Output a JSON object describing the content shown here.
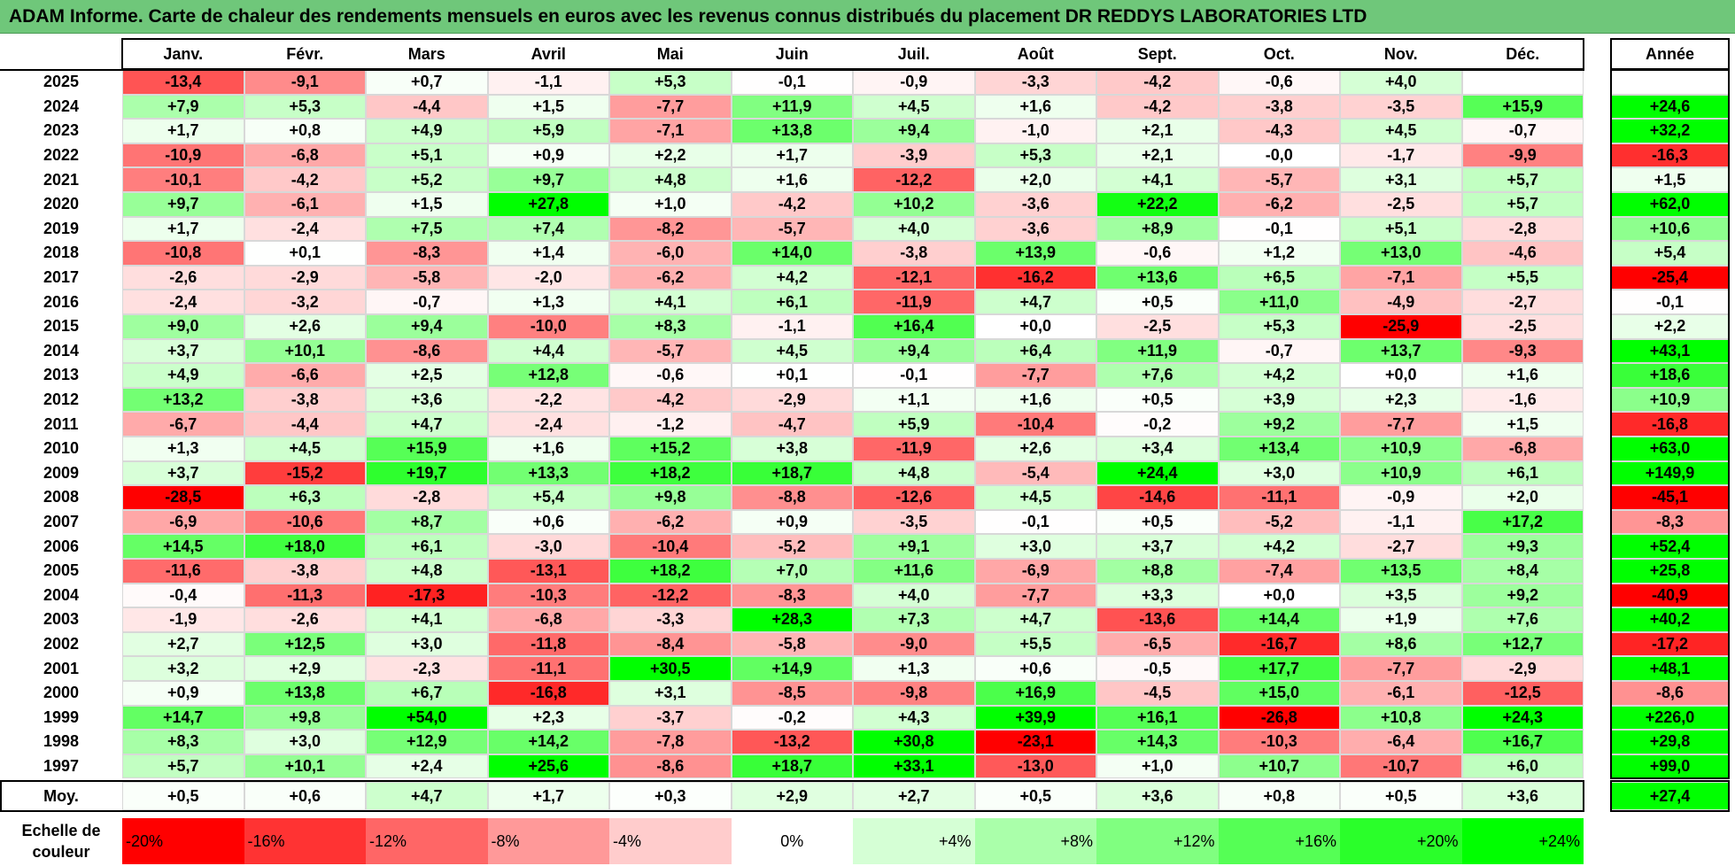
{
  "title": "ADAM Informe. Carte de chaleur des rendements mensuels en euros avec les revenus connus distribués du placement DR REDDYS LABORATORIES LTD",
  "chart_data": {
    "type": "heatmap",
    "months": [
      "Janv.",
      "Févr.",
      "Mars",
      "Avril",
      "Mai",
      "Juin",
      "Juil.",
      "Août",
      "Sept.",
      "Oct.",
      "Nov.",
      "Déc."
    ],
    "year_header": "Année",
    "avg_label": "Moy.",
    "rows": [
      {
        "year": "2025",
        "values": [
          "-13,4",
          "-9,1",
          "+0,7",
          "-1,1",
          "+5,3",
          "-0,1",
          "-0,9",
          "-3,3",
          "-4,2",
          "-0,6",
          "+4,0",
          ""
        ],
        "annual": ""
      },
      {
        "year": "2024",
        "values": [
          "+7,9",
          "+5,3",
          "-4,4",
          "+1,5",
          "-7,7",
          "+11,9",
          "+4,5",
          "+1,6",
          "-4,2",
          "-3,8",
          "-3,5",
          "+15,9"
        ],
        "annual": "+24,6"
      },
      {
        "year": "2023",
        "values": [
          "+1,7",
          "+0,8",
          "+4,9",
          "+5,9",
          "-7,1",
          "+13,8",
          "+9,4",
          "-1,0",
          "+2,1",
          "-4,3",
          "+4,5",
          "-0,7"
        ],
        "annual": "+32,2"
      },
      {
        "year": "2022",
        "values": [
          "-10,9",
          "-6,8",
          "+5,1",
          "+0,9",
          "+2,2",
          "+1,7",
          "-3,9",
          "+5,3",
          "+2,1",
          "-0,0",
          "-1,7",
          "-9,9"
        ],
        "annual": "-16,3"
      },
      {
        "year": "2021",
        "values": [
          "-10,1",
          "-4,2",
          "+5,2",
          "+9,7",
          "+4,8",
          "+1,6",
          "-12,2",
          "+2,0",
          "+4,1",
          "-5,7",
          "+3,1",
          "+5,7"
        ],
        "annual": "+1,5"
      },
      {
        "year": "2020",
        "values": [
          "+9,7",
          "-6,1",
          "+1,5",
          "+27,8",
          "+1,0",
          "-4,2",
          "+10,2",
          "-3,6",
          "+22,2",
          "-6,2",
          "-2,5",
          "+5,7"
        ],
        "annual": "+62,0"
      },
      {
        "year": "2019",
        "values": [
          "+1,7",
          "-2,4",
          "+7,5",
          "+7,4",
          "-8,2",
          "-5,7",
          "+4,0",
          "-3,6",
          "+8,9",
          "-0,1",
          "+5,1",
          "-2,8"
        ],
        "annual": "+10,6"
      },
      {
        "year": "2018",
        "values": [
          "-10,8",
          "+0,1",
          "-8,3",
          "+1,4",
          "-6,0",
          "+14,0",
          "-3,8",
          "+13,9",
          "-0,6",
          "+1,2",
          "+13,0",
          "-4,6"
        ],
        "annual": "+5,4"
      },
      {
        "year": "2017",
        "values": [
          "-2,6",
          "-2,9",
          "-5,8",
          "-2,0",
          "-6,2",
          "+4,2",
          "-12,1",
          "-16,2",
          "+13,6",
          "+6,5",
          "-7,1",
          "+5,5"
        ],
        "annual": "-25,4"
      },
      {
        "year": "2016",
        "values": [
          "-2,4",
          "-3,2",
          "-0,7",
          "+1,3",
          "+4,1",
          "+6,1",
          "-11,9",
          "+4,7",
          "+0,5",
          "+11,0",
          "-4,9",
          "-2,7"
        ],
        "annual": "-0,1"
      },
      {
        "year": "2015",
        "values": [
          "+9,0",
          "+2,6",
          "+9,4",
          "-10,0",
          "+8,3",
          "-1,1",
          "+16,4",
          "+0,0",
          "-2,5",
          "+5,3",
          "-25,9",
          "-2,5"
        ],
        "annual": "+2,2"
      },
      {
        "year": "2014",
        "values": [
          "+3,7",
          "+10,1",
          "-8,6",
          "+4,4",
          "-5,7",
          "+4,5",
          "+9,4",
          "+6,4",
          "+11,9",
          "-0,7",
          "+13,7",
          "-9,3"
        ],
        "annual": "+43,1"
      },
      {
        "year": "2013",
        "values": [
          "+4,9",
          "-6,6",
          "+2,5",
          "+12,8",
          "-0,6",
          "+0,1",
          "-0,1",
          "-7,7",
          "+7,6",
          "+4,2",
          "+0,0",
          "+1,6"
        ],
        "annual": "+18,6"
      },
      {
        "year": "2012",
        "values": [
          "+13,2",
          "-3,8",
          "+3,6",
          "-2,2",
          "-4,2",
          "-2,9",
          "+1,1",
          "+1,6",
          "+0,5",
          "+3,9",
          "+2,3",
          "-1,6"
        ],
        "annual": "+10,9"
      },
      {
        "year": "2011",
        "values": [
          "-6,7",
          "-4,4",
          "+4,7",
          "-2,4",
          "-1,2",
          "-4,7",
          "+5,9",
          "-10,4",
          "-0,2",
          "+9,2",
          "-7,7",
          "+1,5"
        ],
        "annual": "-16,8"
      },
      {
        "year": "2010",
        "values": [
          "+1,3",
          "+4,5",
          "+15,9",
          "+1,6",
          "+15,2",
          "+3,8",
          "-11,9",
          "+2,6",
          "+3,4",
          "+13,4",
          "+10,9",
          "-6,8"
        ],
        "annual": "+63,0"
      },
      {
        "year": "2009",
        "values": [
          "+3,7",
          "-15,2",
          "+19,7",
          "+13,3",
          "+18,2",
          "+18,7",
          "+4,8",
          "-5,4",
          "+24,4",
          "+3,0",
          "+10,9",
          "+6,1"
        ],
        "annual": "+149,9"
      },
      {
        "year": "2008",
        "values": [
          "-28,5",
          "+6,3",
          "-2,8",
          "+5,4",
          "+9,8",
          "-8,8",
          "-12,6",
          "+4,5",
          "-14,6",
          "-11,1",
          "-0,9",
          "+2,0"
        ],
        "annual": "-45,1"
      },
      {
        "year": "2007",
        "values": [
          "-6,9",
          "-10,6",
          "+8,7",
          "+0,6",
          "-6,2",
          "+0,9",
          "-3,5",
          "-0,1",
          "+0,5",
          "-5,2",
          "-1,1",
          "+17,2"
        ],
        "annual": "-8,3"
      },
      {
        "year": "2006",
        "values": [
          "+14,5",
          "+18,0",
          "+6,1",
          "-3,0",
          "-10,4",
          "-5,2",
          "+9,1",
          "+3,0",
          "+3,7",
          "+4,2",
          "-2,7",
          "+9,3"
        ],
        "annual": "+52,4"
      },
      {
        "year": "2005",
        "values": [
          "-11,6",
          "-3,8",
          "+4,8",
          "-13,1",
          "+18,2",
          "+7,0",
          "+11,6",
          "-6,9",
          "+8,8",
          "-7,4",
          "+13,5",
          "+8,4"
        ],
        "annual": "+25,8"
      },
      {
        "year": "2004",
        "values": [
          "-0,4",
          "-11,3",
          "-17,3",
          "-10,3",
          "-12,2",
          "-8,3",
          "+4,0",
          "-7,7",
          "+3,3",
          "+0,0",
          "+3,5",
          "+9,2"
        ],
        "annual": "-40,9"
      },
      {
        "year": "2003",
        "values": [
          "-1,9",
          "-2,6",
          "+4,1",
          "-6,8",
          "-3,3",
          "+28,3",
          "+7,3",
          "+4,7",
          "-13,6",
          "+14,4",
          "+1,9",
          "+7,6"
        ],
        "annual": "+40,2"
      },
      {
        "year": "2002",
        "values": [
          "+2,7",
          "+12,5",
          "+3,0",
          "-11,8",
          "-8,4",
          "-5,8",
          "-9,0",
          "+5,5",
          "-6,5",
          "-16,7",
          "+8,6",
          "+12,7"
        ],
        "annual": "-17,2"
      },
      {
        "year": "2001",
        "values": [
          "+3,2",
          "+2,9",
          "-2,3",
          "-11,1",
          "+30,5",
          "+14,9",
          "+1,3",
          "+0,6",
          "-0,5",
          "+17,7",
          "-7,7",
          "-2,9"
        ],
        "annual": "+48,1"
      },
      {
        "year": "2000",
        "values": [
          "+0,9",
          "+13,8",
          "+6,7",
          "-16,8",
          "+3,1",
          "-8,5",
          "-9,8",
          "+16,9",
          "-4,5",
          "+15,0",
          "-6,1",
          "-12,5"
        ],
        "annual": "-8,6"
      },
      {
        "year": "1999",
        "values": [
          "+14,7",
          "+9,8",
          "+54,0",
          "+2,3",
          "-3,7",
          "-0,2",
          "+4,3",
          "+39,9",
          "+16,1",
          "-26,8",
          "+10,8",
          "+24,3"
        ],
        "annual": "+226,0"
      },
      {
        "year": "1998",
        "values": [
          "+8,3",
          "+3,0",
          "+12,9",
          "+14,2",
          "-7,8",
          "-13,2",
          "+30,8",
          "-23,1",
          "+14,3",
          "-10,3",
          "-6,4",
          "+16,7"
        ],
        "annual": "+29,8"
      },
      {
        "year": "1997",
        "values": [
          "+5,7",
          "+10,1",
          "+2,4",
          "+25,6",
          "-8,6",
          "+18,7",
          "+33,1",
          "-13,0",
          "+1,0",
          "+10,7",
          "-10,7",
          "+6,0"
        ],
        "annual": "+99,0"
      }
    ],
    "averages": [
      "+0,5",
      "+0,6",
      "+4,7",
      "+1,7",
      "+0,3",
      "+2,9",
      "+2,7",
      "+0,5",
      "+3,6",
      "+0,8",
      "+0,5",
      "+3,6"
    ],
    "average_annual": "+27,4",
    "scale_label": "Echelle de couleur",
    "scale": [
      {
        "label": "-20%",
        "value": -20
      },
      {
        "label": "-16%",
        "value": -16
      },
      {
        "label": "-12%",
        "value": -12
      },
      {
        "label": "-8%",
        "value": -8
      },
      {
        "label": "-4%",
        "value": -4
      },
      {
        "label": "0%",
        "value": 0
      },
      {
        "label": "+4%",
        "value": 4
      },
      {
        "label": "+8%",
        "value": 8
      },
      {
        "label": "+12%",
        "value": 12
      },
      {
        "label": "+16%",
        "value": 16
      },
      {
        "label": "+20%",
        "value": 20
      },
      {
        "label": "+24%",
        "value": 24
      }
    ],
    "colors": {
      "negative_max": "#ff0000",
      "zero": "#ffffff",
      "positive_max": "#00ff00",
      "title_bar": "#6fc77a"
    }
  }
}
